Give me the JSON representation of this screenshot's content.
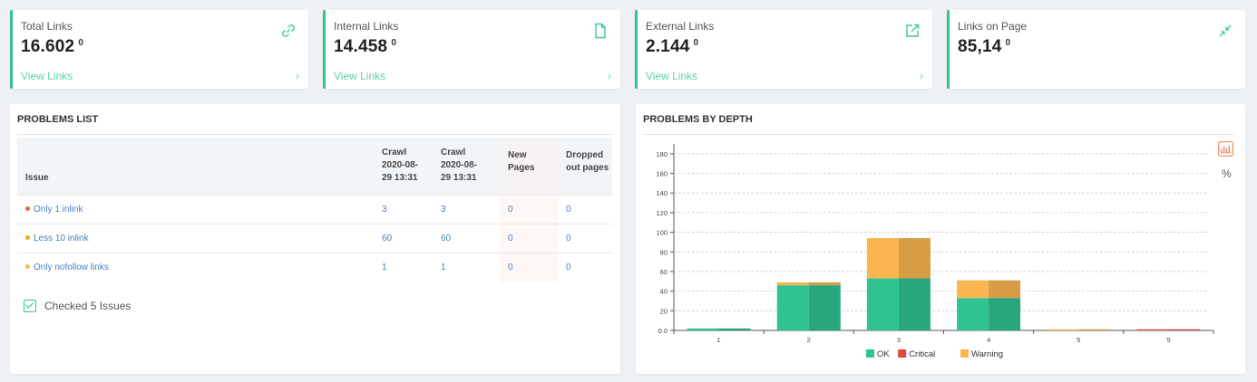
{
  "stats": [
    {
      "label": "Total Links",
      "value": "16.602",
      "delta": "0",
      "link": "View Links",
      "chevron": "›",
      "icon": "link-icon"
    },
    {
      "label": "Internal Links",
      "value": "14.458",
      "delta": "0",
      "link": "View Links",
      "chevron": "›",
      "icon": "file-icon"
    },
    {
      "label": "External Links",
      "value": "2.144",
      "delta": "0",
      "link": "View Links",
      "chevron": "›",
      "icon": "external-link-icon"
    },
    {
      "label": "Links on Page",
      "value": "85,14",
      "delta": "0",
      "icon": "collapse-arrows-icon"
    }
  ],
  "problems_list": {
    "title": "PROBLEMS LIST",
    "headers": {
      "issue": "Issue",
      "crawl1_line1": "Crawl",
      "crawl1_line2": "2020-08-",
      "crawl1_line3": "29 13:31",
      "crawl2_line1": "Crawl",
      "crawl2_line2": "2020-08-",
      "crawl2_line3": "29 13:31",
      "new_line1": "New",
      "new_line2": "Pages",
      "dropped_line1": "Dropped",
      "dropped_line2": "out pages"
    },
    "rows": [
      {
        "issue": "Only 1 inlink",
        "dot_color": "#e8643c",
        "crawl1": "3",
        "crawl2": "3",
        "new": "0",
        "dropped": "0"
      },
      {
        "issue": "Less 10 inlink",
        "dot_color": "#f5a623",
        "crawl1": "60",
        "crawl2": "60",
        "new": "0",
        "dropped": "0"
      },
      {
        "issue": "Only nofollow links",
        "dot_color": "#f5b942",
        "crawl1": "1",
        "crawl2": "1",
        "new": "0",
        "dropped": "0"
      }
    ],
    "checked_label": "Checked 5 Issues"
  },
  "chart_panel": {
    "title": "PROBLEMS BY DEPTH",
    "percent_toggle": "%"
  },
  "colors": {
    "ok": "#2fc293",
    "critical": "#e2463c",
    "warning": "#fbb550",
    "accent": "#2fc293"
  },
  "chart_data": {
    "type": "bar",
    "stacked": true,
    "categories": [
      "1",
      "2",
      "3",
      "4",
      "5",
      "5"
    ],
    "series": [
      {
        "name": "OK",
        "values": [
          2,
          46,
          53,
          33,
          0,
          0
        ]
      },
      {
        "name": "Critical",
        "values": [
          0,
          0,
          0,
          0,
          0,
          1
        ]
      },
      {
        "name": "Warning",
        "values": [
          0,
          3,
          41,
          18,
          1,
          0
        ]
      }
    ],
    "yticks": [
      "0.0",
      "20",
      "40",
      "60",
      "80",
      "100",
      "120",
      "140",
      "160",
      "180"
    ],
    "ylim": [
      0,
      190
    ],
    "grid": true,
    "legend": "bottom"
  }
}
